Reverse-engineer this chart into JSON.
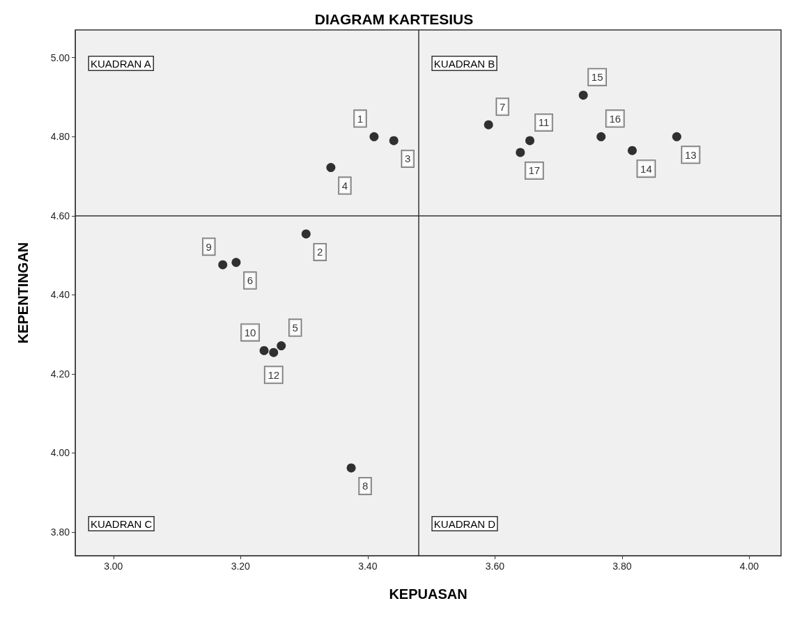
{
  "chart_data": {
    "type": "scatter",
    "title": "DIAGRAM KARTESIUS",
    "xlabel": "KEPUASAN",
    "ylabel": "KEPENTINGAN",
    "series": [
      {
        "name": "1",
        "color": "#000000",
        "x": [
          3.41
        ],
        "values": [
          4.8
        ]
      },
      {
        "name": "2",
        "color": "#000000",
        "x": [
          3.303
        ],
        "values": [
          4.554
        ]
      },
      {
        "name": "3",
        "color": "#000000",
        "x": [
          3.441
        ],
        "values": [
          4.79
        ]
      },
      {
        "name": "4",
        "color": "#000000",
        "x": [
          3.342
        ],
        "values": [
          4.722
        ]
      },
      {
        "name": "5",
        "color": "#000000",
        "x": [
          3.264
        ],
        "values": [
          4.271
        ]
      },
      {
        "name": "6",
        "color": "#000000",
        "x": [
          3.193
        ],
        "values": [
          4.482
        ]
      },
      {
        "name": "7",
        "color": "#000000",
        "x": [
          3.59
        ],
        "values": [
          4.83
        ]
      },
      {
        "name": "8",
        "color": "#000000",
        "x": [
          3.374
        ],
        "values": [
          3.962
        ]
      },
      {
        "name": "9",
        "color": "#000000",
        "x": [
          3.172
        ],
        "values": [
          4.476
        ]
      },
      {
        "name": "10",
        "color": "#000000",
        "x": [
          3.237
        ],
        "values": [
          4.259
        ]
      },
      {
        "name": "11",
        "color": "#000000",
        "x": [
          3.655
        ],
        "values": [
          4.79
        ]
      },
      {
        "name": "12",
        "color": "#000000",
        "x": [
          3.252
        ],
        "values": [
          4.254
        ]
      },
      {
        "name": "13",
        "color": "#000000",
        "x": [
          3.886
        ],
        "values": [
          4.8
        ]
      },
      {
        "name": "14",
        "color": "#000000",
        "x": [
          3.816
        ],
        "values": [
          4.765
        ]
      },
      {
        "name": "15",
        "color": "#000000",
        "x": [
          3.739
        ],
        "values": [
          4.905
        ]
      },
      {
        "name": "16",
        "color": "#000000",
        "x": [
          3.767
        ],
        "values": [
          4.8
        ]
      },
      {
        "name": "17",
        "color": "#000000",
        "x": [
          3.64
        ],
        "values": [
          4.76
        ]
      }
    ],
    "marker": "circle",
    "grid": false,
    "xlim": [
      2.94,
      4.05
    ],
    "xticks": [
      {
        "value": 3,
        "label": "3.00"
      },
      {
        "value": 3.2,
        "label": "3.20"
      },
      {
        "value": 3.4,
        "label": "3.40"
      },
      {
        "value": 3.6,
        "label": "3.60"
      },
      {
        "value": 3.8,
        "label": "3.80"
      },
      {
        "value": 4,
        "label": "4.00"
      }
    ],
    "ylim": [
      3.74,
      5.07
    ],
    "yticks": [
      {
        "value": 3.8,
        "label": "3.80"
      },
      {
        "value": 4,
        "label": "4.00"
      },
      {
        "value": 4.2,
        "label": "4.20"
      },
      {
        "value": 4.4,
        "label": "4.40"
      },
      {
        "value": 4.6,
        "label": "4.60"
      },
      {
        "value": 4.8,
        "label": "4.80"
      },
      {
        "value": 5,
        "label": "5.00"
      }
    ],
    "ref_lines": [
      {
        "axis": "x",
        "value": 3.48,
        "color": "#333333"
      },
      {
        "axis": "y",
        "value": 4.6,
        "color": "#333333"
      }
    ],
    "annotations": [
      "KUADRAN A",
      "KUADRAN B",
      "KUADRAN C",
      "KUADRAN D"
    ]
  }
}
